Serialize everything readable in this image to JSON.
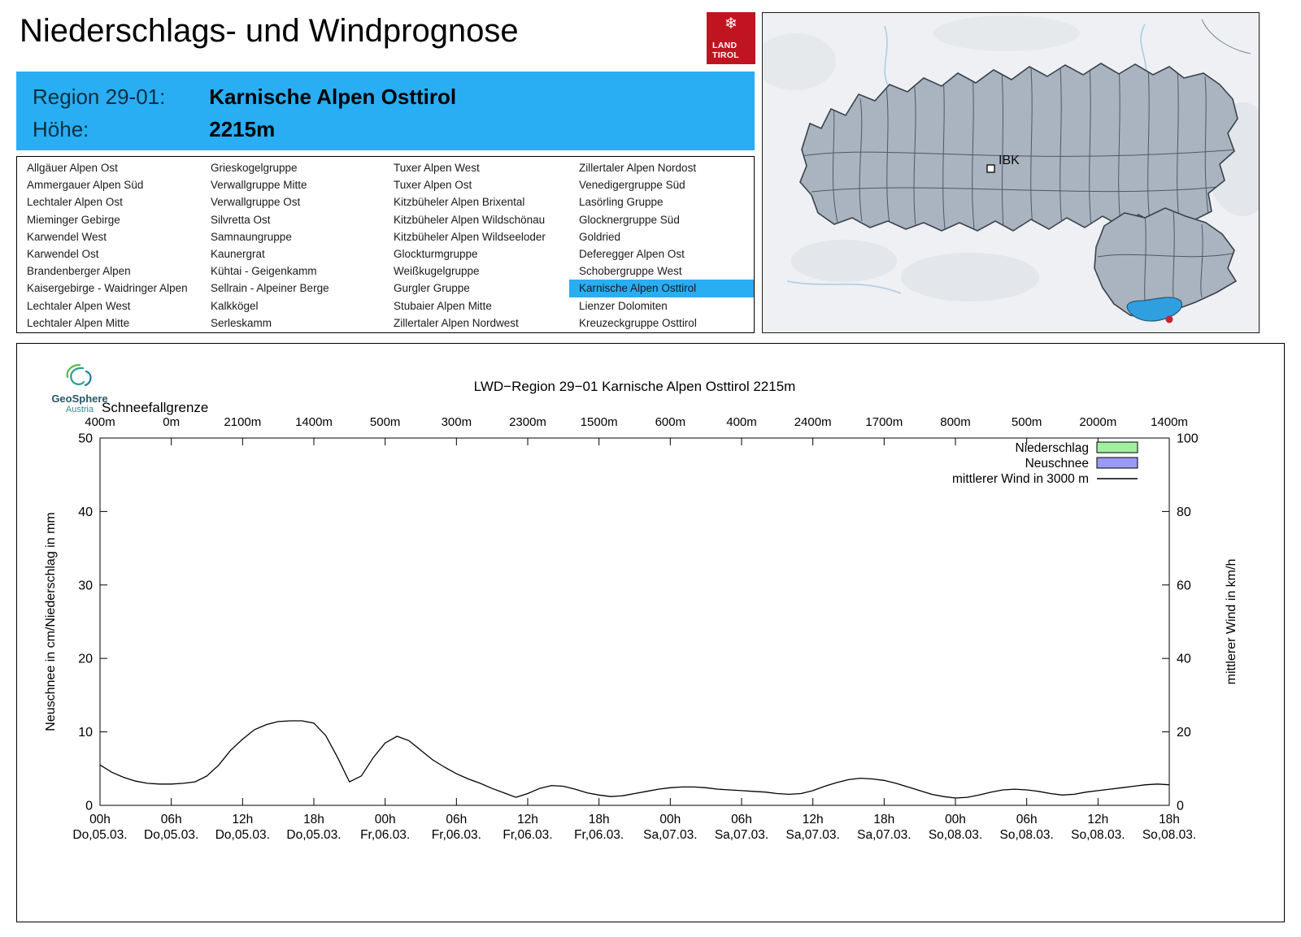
{
  "header": {
    "title": "Niederschlags- und Windprognose",
    "logo": {
      "snowflake": "❄",
      "line1": "LAND",
      "line2": "TIROL",
      "color": "#c11421"
    }
  },
  "region_header": {
    "region_label": "Region 29-01:",
    "region_value": "Karnische Alpen Osttirol",
    "height_label": "Höhe:",
    "height_value": "2215m",
    "accent_color": "#29aef3"
  },
  "region_list": {
    "selected": "Karnische Alpen Osttirol",
    "columns": [
      [
        "Allgäuer Alpen Ost",
        "Ammergauer Alpen Süd",
        "Lechtaler Alpen Ost",
        "Mieminger Gebirge",
        "Karwendel West",
        "Karwendel Ost",
        "Brandenberger Alpen",
        "Kaisergebirge - Waidringer Alpen",
        "Lechtaler Alpen West",
        "Lechtaler Alpen Mitte"
      ],
      [
        "Grieskogelgruppe",
        "Verwallgruppe Mitte",
        "Verwallgruppe Ost",
        "Silvretta Ost",
        "Samnaungruppe",
        "Kaunergrat",
        "Kühtai - Geigenkamm",
        "Sellrain - Alpeiner Berge",
        "Kalkkögel",
        "Serleskamm"
      ],
      [
        "Tuxer Alpen West",
        "Tuxer Alpen Ost",
        "Kitzbüheler Alpen Brixental",
        "Kitzbüheler Alpen Wildschönau",
        "Kitzbüheler Alpen Wildseeloder",
        "Glockturmgruppe",
        "Weißkugelgruppe",
        "Gurgler Gruppe",
        "Stubaier Alpen Mitte",
        "Zillertaler Alpen Nordwest"
      ],
      [
        "Zillertaler Alpen Nordost",
        "Venedigergruppe Süd",
        "Lasörling Gruppe",
        "Glocknergruppe Süd",
        "Goldried",
        "Deferegger Alpen Ost",
        "Schobergruppe West",
        "Karnische Alpen Osttirol",
        "Lienzer Dolomiten",
        "Kreuzeckgruppe Osttirol"
      ]
    ]
  },
  "map": {
    "marker_label": "IBK",
    "region_fill": "#aab4c0",
    "selected_fill": "#2f9fe0",
    "dot_color": "#cf2030"
  },
  "geosphere": {
    "name": "GeoSphere",
    "sub": "Austria"
  },
  "chart_data": {
    "type": "line",
    "title": "LWD−Region 29−01 Karnische Alpen Osttirol 2215m",
    "snowline_label": "Schneefallgrenze",
    "ylabel_left": "Neuschnee in cm/Niederschlag in mm",
    "ylabel_right": "mittlerer Wind in km/h",
    "ylim_left": [
      0,
      50
    ],
    "ylim_right": [
      0,
      100
    ],
    "yticks_left": [
      0,
      10,
      20,
      30,
      40,
      50
    ],
    "yticks_right": [
      0,
      20,
      40,
      60,
      80,
      100
    ],
    "x_range_hours": [
      0,
      90
    ],
    "grid": false,
    "legend_position": "top-right",
    "x_ticks": [
      {
        "hour": 0,
        "time": "00h",
        "date": "Do,05.03.",
        "snowline": "400m"
      },
      {
        "hour": 6,
        "time": "06h",
        "date": "Do,05.03.",
        "snowline": "0m"
      },
      {
        "hour": 12,
        "time": "12h",
        "date": "Do,05.03.",
        "snowline": "2100m"
      },
      {
        "hour": 18,
        "time": "18h",
        "date": "Do,05.03.",
        "snowline": "1400m"
      },
      {
        "hour": 24,
        "time": "00h",
        "date": "Fr,06.03.",
        "snowline": "500m"
      },
      {
        "hour": 30,
        "time": "06h",
        "date": "Fr,06.03.",
        "snowline": "300m"
      },
      {
        "hour": 36,
        "time": "12h",
        "date": "Fr,06.03.",
        "snowline": "2300m"
      },
      {
        "hour": 42,
        "time": "18h",
        "date": "Fr,06.03.",
        "snowline": "1500m"
      },
      {
        "hour": 48,
        "time": "00h",
        "date": "Sa,07.03.",
        "snowline": "600m"
      },
      {
        "hour": 54,
        "time": "06h",
        "date": "Sa,07.03.",
        "snowline": "400m"
      },
      {
        "hour": 60,
        "time": "12h",
        "date": "Sa,07.03.",
        "snowline": "2400m"
      },
      {
        "hour": 66,
        "time": "18h",
        "date": "Sa,07.03.",
        "snowline": "1700m"
      },
      {
        "hour": 72,
        "time": "00h",
        "date": "So,08.03.",
        "snowline": "800m"
      },
      {
        "hour": 78,
        "time": "06h",
        "date": "So,08.03.",
        "snowline": "500m"
      },
      {
        "hour": 84,
        "time": "12h",
        "date": "So,08.03.",
        "snowline": "2000m"
      },
      {
        "hour": 90,
        "time": "18h",
        "date": "So,08.03.",
        "snowline": "1400m"
      }
    ],
    "legend": [
      {
        "label": "Niederschlag",
        "swatch": "box",
        "color": "#a0f0a0"
      },
      {
        "label": "Neuschnee",
        "swatch": "box",
        "color": "#9a9af5"
      },
      {
        "label": "mittlerer Wind in 3000 m",
        "swatch": "line",
        "color": "#000000"
      }
    ],
    "series": [
      {
        "name": "Niederschlag",
        "type": "bar",
        "axis": "left",
        "unit": "mm",
        "values": []
      },
      {
        "name": "Neuschnee",
        "type": "bar",
        "axis": "left",
        "unit": "cm",
        "values": []
      },
      {
        "name": "mittlerer Wind in 3000 m",
        "type": "line",
        "axis": "right",
        "unit": "km/h",
        "points": [
          [
            0,
            11
          ],
          [
            1,
            9
          ],
          [
            2,
            7.6
          ],
          [
            3,
            6.6
          ],
          [
            4,
            6
          ],
          [
            5,
            5.8
          ],
          [
            6,
            5.8
          ],
          [
            7,
            6
          ],
          [
            8,
            6.4
          ],
          [
            9,
            8
          ],
          [
            10,
            11
          ],
          [
            11,
            15
          ],
          [
            12,
            18
          ],
          [
            13,
            20.6
          ],
          [
            14,
            22
          ],
          [
            15,
            22.8
          ],
          [
            16,
            23
          ],
          [
            17,
            23
          ],
          [
            18,
            22.4
          ],
          [
            19,
            19
          ],
          [
            20,
            13
          ],
          [
            21,
            6.4
          ],
          [
            22,
            8
          ],
          [
            23,
            13
          ],
          [
            24,
            17
          ],
          [
            25,
            18.8
          ],
          [
            26,
            17.6
          ],
          [
            27,
            15
          ],
          [
            28,
            12.4
          ],
          [
            29,
            10.4
          ],
          [
            30,
            8.6
          ],
          [
            31,
            7.2
          ],
          [
            32,
            6
          ],
          [
            33,
            4.6
          ],
          [
            34,
            3.4
          ],
          [
            35,
            2.2
          ],
          [
            36,
            3.2
          ],
          [
            37,
            4.6
          ],
          [
            38,
            5.4
          ],
          [
            39,
            5.2
          ],
          [
            40,
            4.4
          ],
          [
            41,
            3.4
          ],
          [
            42,
            2.8
          ],
          [
            43,
            2.4
          ],
          [
            44,
            2.6
          ],
          [
            45,
            3.2
          ],
          [
            46,
            3.8
          ],
          [
            47,
            4.4
          ],
          [
            48,
            4.8
          ],
          [
            49,
            5
          ],
          [
            50,
            5
          ],
          [
            51,
            4.8
          ],
          [
            52,
            4.4
          ],
          [
            53,
            4.2
          ],
          [
            54,
            4
          ],
          [
            55,
            3.8
          ],
          [
            56,
            3.6
          ],
          [
            57,
            3.2
          ],
          [
            58,
            3
          ],
          [
            59,
            3.2
          ],
          [
            60,
            4
          ],
          [
            61,
            5.2
          ],
          [
            62,
            6.2
          ],
          [
            63,
            7
          ],
          [
            64,
            7.4
          ],
          [
            65,
            7.2
          ],
          [
            66,
            6.8
          ],
          [
            67,
            6
          ],
          [
            68,
            5
          ],
          [
            69,
            4
          ],
          [
            70,
            3
          ],
          [
            71,
            2.4
          ],
          [
            72,
            2
          ],
          [
            73,
            2.2
          ],
          [
            74,
            2.8
          ],
          [
            75,
            3.6
          ],
          [
            76,
            4.2
          ],
          [
            77,
            4.4
          ],
          [
            78,
            4.2
          ],
          [
            79,
            3.8
          ],
          [
            80,
            3.2
          ],
          [
            81,
            2.8
          ],
          [
            82,
            3
          ],
          [
            83,
            3.6
          ],
          [
            84,
            4
          ],
          [
            85,
            4.4
          ],
          [
            86,
            4.8
          ],
          [
            87,
            5.2
          ],
          [
            88,
            5.6
          ],
          [
            89,
            5.8
          ],
          [
            90,
            5.6
          ]
        ]
      }
    ]
  }
}
